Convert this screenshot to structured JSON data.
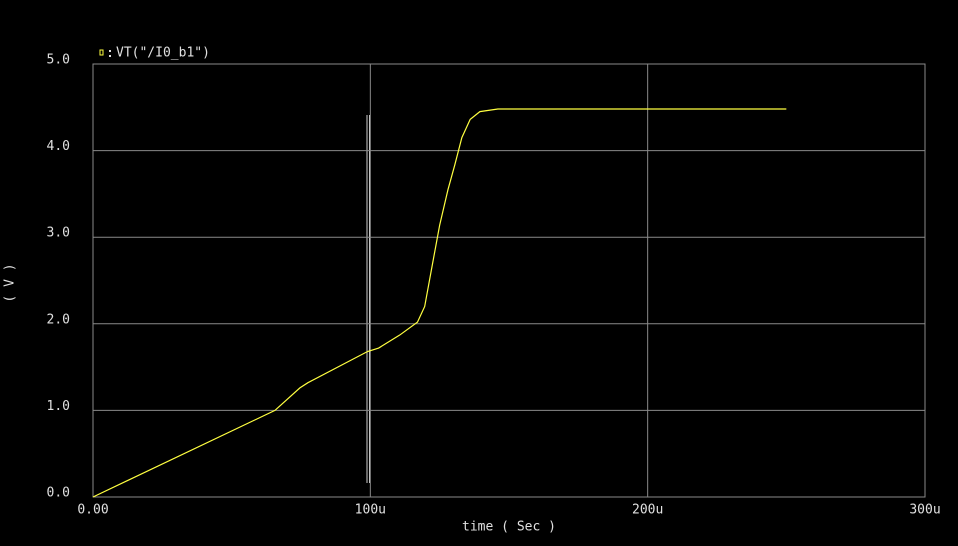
{
  "chart_data": {
    "type": "line",
    "xlabel": "time ( Sec )",
    "ylabel": "( V )",
    "xlim": [
      0,
      0.0003
    ],
    "ylim": [
      0,
      5
    ],
    "xticks": [
      {
        "value": 0,
        "label": "0.00"
      },
      {
        "value": 0.0001,
        "label": "100u"
      },
      {
        "value": 0.0002,
        "label": "200u"
      },
      {
        "value": 0.0003,
        "label": "300u"
      }
    ],
    "yticks": [
      {
        "value": 0,
        "label": "0.0"
      },
      {
        "value": 1,
        "label": "1.0"
      },
      {
        "value": 2,
        "label": "2.0"
      },
      {
        "value": 3,
        "label": "3.0"
      },
      {
        "value": 4,
        "label": "4.0"
      },
      {
        "value": 5,
        "label": "5.0"
      }
    ],
    "grid": true,
    "series": [
      {
        "name": "VT(\"/I0_b1\")",
        "color": "#ffff40",
        "x": [
          0,
          6.56e-05,
          7.46e-05,
          7.75e-05,
          9.9e-05,
          0.000103,
          0.0001106,
          0.000117,
          0.0001196,
          0.000122,
          0.000125,
          0.000128,
          0.0001305,
          0.000133,
          0.000136,
          0.0001395,
          0.000146,
          0.00025
        ],
        "values": [
          0,
          1.0,
          1.26,
          1.32,
          1.68,
          1.72,
          1.87,
          2.02,
          2.2,
          2.62,
          3.14,
          3.55,
          3.84,
          4.15,
          4.36,
          4.45,
          4.48,
          4.48
        ]
      }
    ]
  }
}
